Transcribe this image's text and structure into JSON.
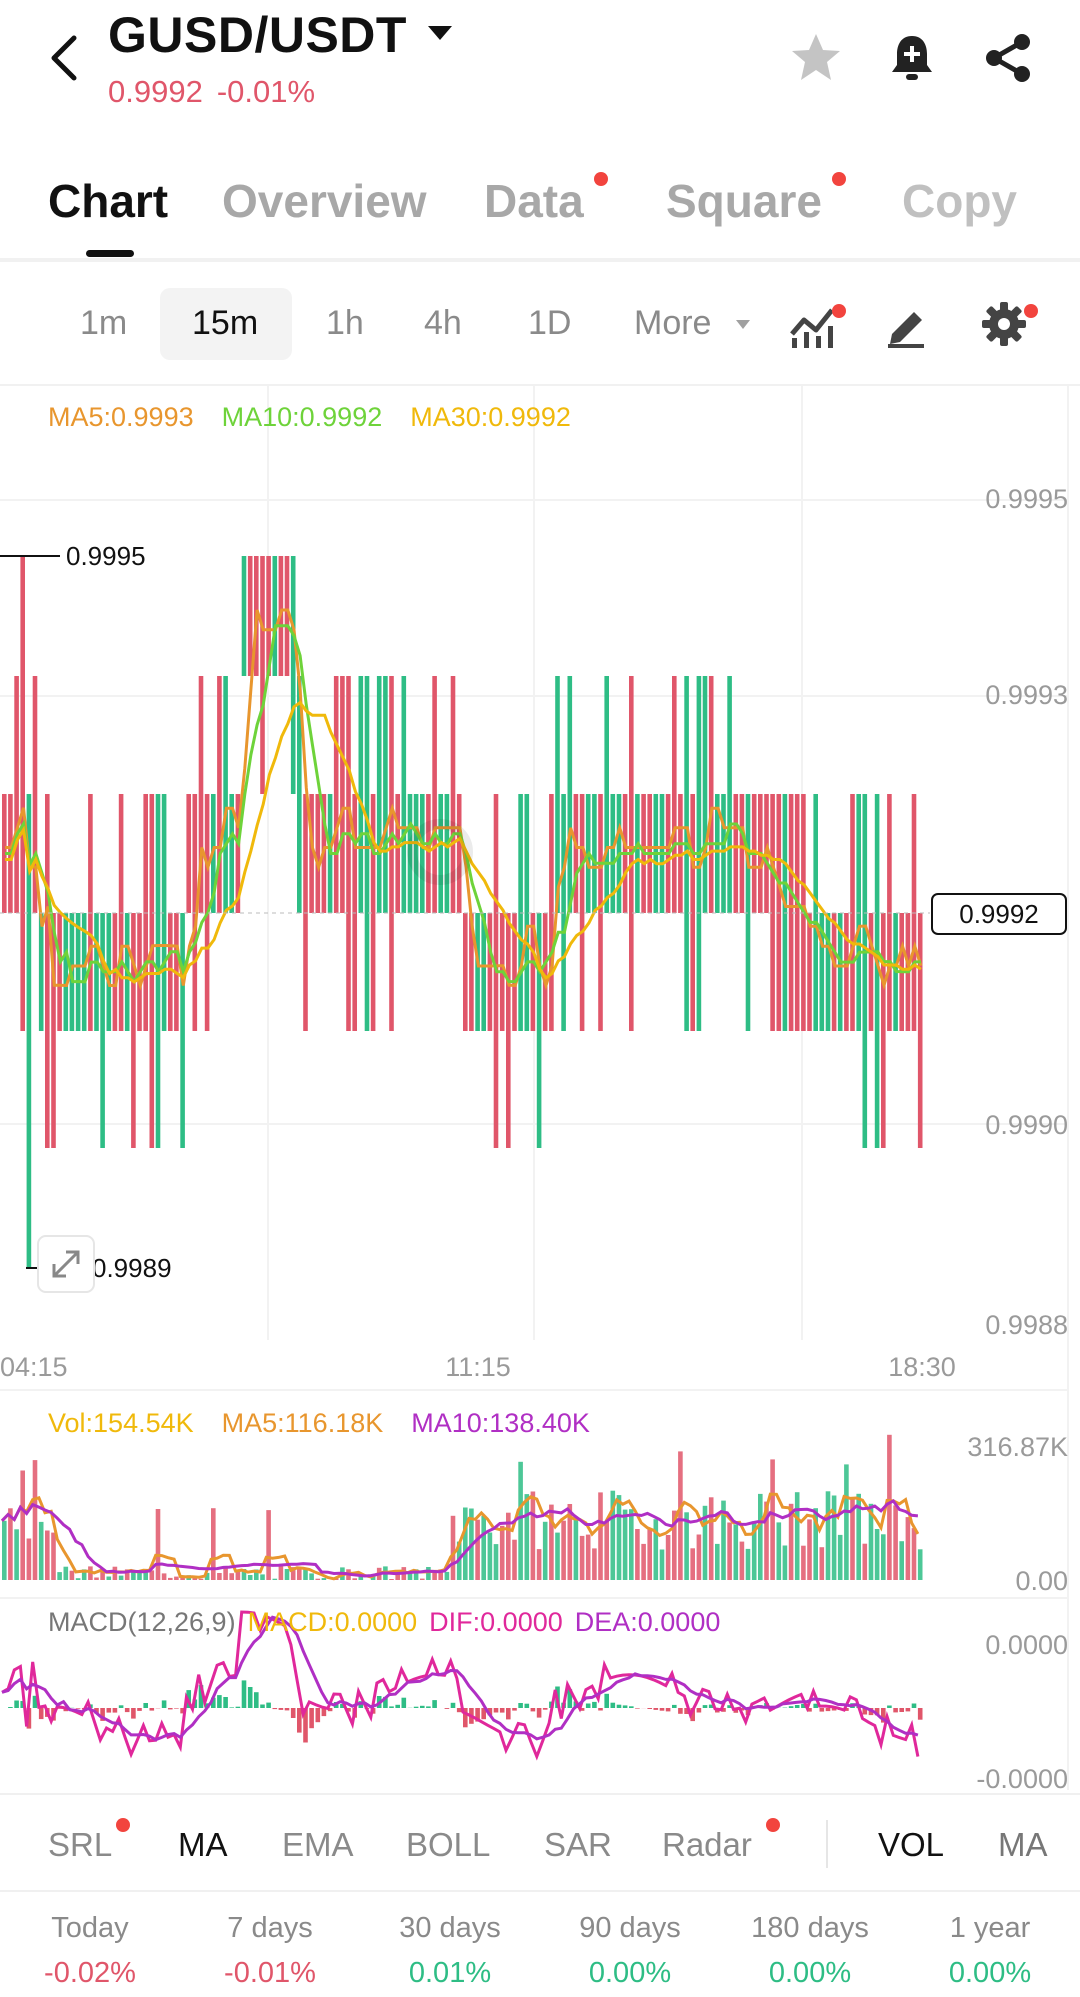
{
  "header": {
    "pair": "GUSD/USDT",
    "price": "0.9992",
    "change": "-0.01%"
  },
  "tabs": [
    {
      "label": "Chart",
      "active": true,
      "dot": false
    },
    {
      "label": "Overview",
      "active": false,
      "dot": false
    },
    {
      "label": "Data",
      "active": false,
      "dot": true
    },
    {
      "label": "Square",
      "active": false,
      "dot": true
    },
    {
      "label": "Copy",
      "active": false,
      "dot": false
    }
  ],
  "timeframes": {
    "items": [
      "1m",
      "15m",
      "1h",
      "4h",
      "1D"
    ],
    "active": "15m",
    "more": "More"
  },
  "ma_legend": {
    "ma5": "MA5:0.9993",
    "ma10": "MA10:0.9992",
    "ma30": "MA30:0.9992"
  },
  "price_axis": {
    "labels": [
      "0.9995",
      "0.9993",
      "0.9990",
      "0.9988"
    ],
    "current": "0.9992",
    "high_marker": "0.9995",
    "low_marker": "0.9989"
  },
  "time_axis": [
    "04:15",
    "11:15",
    "18:30"
  ],
  "volume": {
    "vol": "Vol:154.54K",
    "ma5": "MA5:116.18K",
    "ma10": "MA10:138.40K",
    "max_label": "316.87K",
    "min_label": "0.00"
  },
  "macd": {
    "params": "MACD(12,26,9)",
    "macd": "MACD:0.0000",
    "dif": "DIF:0.0000",
    "dea": "DEA:0.0000",
    "top_label": "0.0000",
    "bottom_label": "-0.0000"
  },
  "indicators": [
    "SRL",
    "MA",
    "EMA",
    "BOLL",
    "SAR",
    "Radar",
    "VOL",
    "MA"
  ],
  "performance": [
    {
      "label": "Today",
      "value": "-0.02%",
      "dir": "neg"
    },
    {
      "label": "7 days",
      "value": "-0.01%",
      "dir": "neg"
    },
    {
      "label": "30 days",
      "value": "0.01%",
      "dir": "pos"
    },
    {
      "label": "90 days",
      "value": "0.00%",
      "dir": "pos"
    },
    {
      "label": "180 days",
      "value": "0.00%",
      "dir": "pos"
    },
    {
      "label": "1 year",
      "value": "0.00%",
      "dir": "pos"
    }
  ],
  "colors": {
    "up": "#2ebd85",
    "down": "#e0566a",
    "ma5": "#e8962e",
    "ma10": "#6ed33a",
    "ma30": "#f0b90b",
    "vol_ma10": "#b02fc4",
    "dif": "#e0289b",
    "dea": "#b02fc4",
    "alert_dot": "#f2443e"
  },
  "icons": [
    "chevron-left-icon",
    "caret-down-icon",
    "star-icon",
    "bell-plus-icon",
    "share-icon",
    "indicator-icon",
    "pencil-icon",
    "gear-icon",
    "expand-icon"
  ]
}
